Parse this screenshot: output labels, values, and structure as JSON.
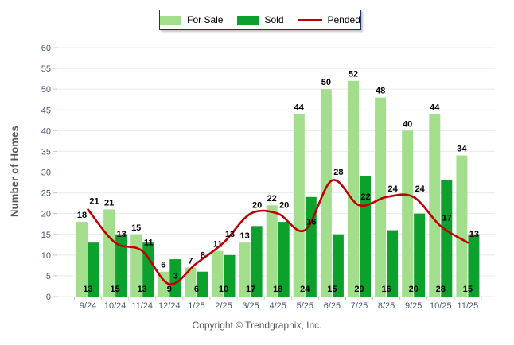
{
  "legend": {
    "items": [
      {
        "label": "For Sale",
        "swatch": "bar",
        "color": "#A3DE8C"
      },
      {
        "label": "Sold",
        "swatch": "bar",
        "color": "#0CA02C"
      },
      {
        "label": "Pended",
        "swatch": "line",
        "color": "#C00000"
      }
    ]
  },
  "y_axis": {
    "title": "Number of Homes",
    "min": 0,
    "max": 60,
    "step": 5
  },
  "footer": {
    "copyright": "Copyright © Trendgraphix, Inc."
  },
  "colors": {
    "for_sale": "#A3DE8C",
    "sold": "#0CA02C",
    "pended": "#C00000",
    "grid": "#E9E9E9",
    "tick": "#C5C5C5",
    "axis_text": "#4A5A74",
    "value_text": "#000000"
  },
  "chart_data": {
    "type": "bar",
    "categories": [
      "9/24",
      "10/24",
      "11/24",
      "12/24",
      "1/25",
      "2/25",
      "3/25",
      "4/25",
      "5/25",
      "6/25",
      "7/25",
      "8/25",
      "9/25",
      "10/25",
      "11/25"
    ],
    "series": [
      {
        "name": "For Sale",
        "type": "bar",
        "values": [
          18,
          21,
          15,
          6,
          7,
          11,
          13,
          22,
          44,
          50,
          52,
          48,
          40,
          44,
          34
        ]
      },
      {
        "name": "Sold",
        "type": "bar",
        "values": [
          13,
          15,
          13,
          9,
          6,
          10,
          17,
          18,
          24,
          15,
          29,
          16,
          20,
          28,
          15
        ]
      },
      {
        "name": "Pended",
        "type": "line",
        "values": [
          21,
          13,
          11,
          3,
          8,
          13,
          20,
          20,
          16,
          28,
          22,
          24,
          24,
          17,
          13
        ]
      }
    ],
    "title": "",
    "xlabel": "",
    "ylabel": "Number of Homes",
    "ylim": [
      0,
      60
    ],
    "grid": true,
    "legend_position": "top"
  }
}
